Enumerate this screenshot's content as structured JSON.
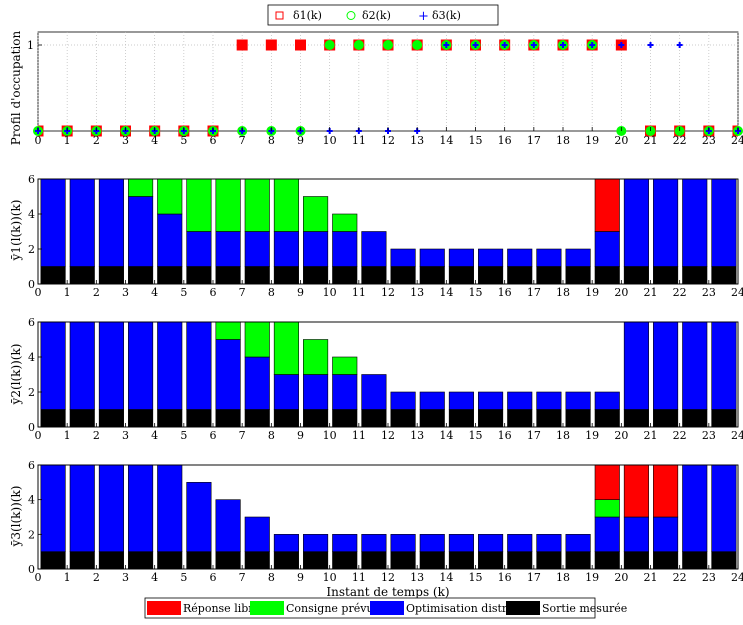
{
  "chart_data": [
    {
      "type": "scatter",
      "ylabel": "Profil d'occupation",
      "xlim": [
        0,
        24
      ],
      "ylim": [
        0,
        1
      ],
      "xticks": [
        0,
        1,
        2,
        3,
        4,
        5,
        6,
        7,
        8,
        9,
        10,
        11,
        12,
        13,
        14,
        15,
        16,
        17,
        18,
        19,
        20,
        21,
        22,
        23,
        24
      ],
      "yticks": [
        1
      ],
      "grid": true,
      "legend_position": "top",
      "series": [
        {
          "name": "δ1(k)",
          "marker": "square",
          "color": "#ff0000",
          "x": [
            0,
            1,
            2,
            3,
            4,
            5,
            6,
            7,
            8,
            9,
            10,
            11,
            12,
            13,
            14,
            15,
            16,
            17,
            18,
            19,
            20,
            21,
            22,
            23,
            24
          ],
          "y": [
            0,
            0,
            0,
            0,
            0,
            0,
            0,
            1,
            1,
            1,
            1,
            1,
            1,
            1,
            1,
            1,
            1,
            1,
            1,
            1,
            1,
            0,
            0,
            0,
            0
          ]
        },
        {
          "name": "δ2(k)",
          "marker": "circle",
          "color": "#00ff00",
          "x": [
            0,
            1,
            2,
            3,
            4,
            5,
            6,
            7,
            8,
            9,
            10,
            11,
            12,
            13,
            14,
            15,
            16,
            17,
            18,
            19,
            20,
            21,
            22,
            23,
            24
          ],
          "y": [
            0,
            0,
            0,
            0,
            0,
            0,
            0,
            0,
            0,
            0,
            1,
            1,
            1,
            1,
            1,
            1,
            1,
            1,
            1,
            1,
            0,
            0,
            0,
            0,
            0
          ]
        },
        {
          "name": "δ3(k)",
          "marker": "plus",
          "color": "#0000ff",
          "x": [
            0,
            1,
            2,
            3,
            4,
            5,
            6,
            7,
            8,
            9,
            10,
            11,
            12,
            13,
            14,
            15,
            16,
            17,
            18,
            19,
            20,
            21,
            22,
            23,
            24
          ],
          "y": [
            0,
            0,
            0,
            0,
            0,
            0,
            0,
            0,
            0,
            0,
            0,
            0,
            0,
            0,
            1,
            1,
            1,
            1,
            1,
            1,
            1,
            1,
            1,
            0,
            0
          ]
        }
      ]
    },
    {
      "type": "bar",
      "stacked": true,
      "ylabel": "ȳ1(l(k))(k)",
      "xlim": [
        0,
        24
      ],
      "ylim": [
        0,
        6
      ],
      "yticks": [
        0,
        2,
        4,
        6
      ],
      "categories": [
        0,
        1,
        2,
        3,
        4,
        5,
        6,
        7,
        8,
        9,
        10,
        11,
        12,
        13,
        14,
        15,
        16,
        17,
        18,
        19,
        20,
        21,
        22,
        23
      ],
      "series": [
        {
          "name": "Sortie mesurée",
          "values": [
            1,
            1,
            1,
            1,
            1,
            1,
            1,
            1,
            1,
            1,
            1,
            1,
            1,
            1,
            1,
            1,
            1,
            1,
            1,
            1,
            1,
            1,
            1,
            1
          ]
        },
        {
          "name": "Optimisation distribuée",
          "values": [
            5,
            5,
            5,
            4,
            3,
            2,
            2,
            2,
            2,
            2,
            2,
            2,
            1,
            1,
            1,
            1,
            1,
            1,
            1,
            2,
            5,
            5,
            5,
            5
          ]
        },
        {
          "name": "Consigne prévue",
          "values": [
            0,
            0,
            0,
            1,
            2,
            3,
            3,
            3,
            3,
            2,
            1,
            0,
            0,
            0,
            0,
            0,
            0,
            0,
            0,
            0,
            0,
            0,
            0,
            0
          ]
        },
        {
          "name": "Réponse libre",
          "values": [
            0,
            0,
            0,
            0,
            0,
            0,
            0,
            0,
            0,
            0,
            0,
            0,
            0,
            0,
            0,
            0,
            0,
            0,
            0,
            3,
            0,
            0,
            0,
            0
          ]
        }
      ]
    },
    {
      "type": "bar",
      "stacked": true,
      "ylabel": "ȳ2(l(k))(k)",
      "xlim": [
        0,
        24
      ],
      "ylim": [
        0,
        6
      ],
      "yticks": [
        0,
        2,
        4,
        6
      ],
      "categories": [
        0,
        1,
        2,
        3,
        4,
        5,
        6,
        7,
        8,
        9,
        10,
        11,
        12,
        13,
        14,
        15,
        16,
        17,
        18,
        19,
        20,
        21,
        22,
        23
      ],
      "series": [
        {
          "name": "Sortie mesurée",
          "values": [
            1,
            1,
            1,
            1,
            1,
            1,
            1,
            1,
            1,
            1,
            1,
            1,
            1,
            1,
            1,
            1,
            1,
            1,
            1,
            1,
            1,
            1,
            1,
            1
          ]
        },
        {
          "name": "Optimisation distribuée",
          "values": [
            5,
            5,
            5,
            5,
            5,
            5,
            4,
            3,
            2,
            2,
            2,
            2,
            1,
            1,
            1,
            1,
            1,
            1,
            1,
            1,
            5,
            5,
            5,
            5
          ]
        },
        {
          "name": "Consigne prévue",
          "values": [
            0,
            0,
            0,
            0,
            0,
            0,
            1,
            2,
            3,
            2,
            1,
            0,
            0,
            0,
            0,
            0,
            0,
            0,
            0,
            0,
            0,
            0,
            0,
            0
          ]
        },
        {
          "name": "Réponse libre",
          "values": [
            0,
            0,
            0,
            0,
            0,
            0,
            0,
            0,
            0,
            0,
            0,
            0,
            0,
            0,
            0,
            0,
            0,
            0,
            0,
            0,
            0,
            0,
            0,
            0
          ]
        }
      ]
    },
    {
      "type": "bar",
      "stacked": true,
      "ylabel": "ȳ3(l(k))(k)",
      "xlabel": "Instant de temps (k)",
      "xlim": [
        0,
        24
      ],
      "ylim": [
        0,
        6
      ],
      "yticks": [
        0,
        2,
        4,
        6
      ],
      "categories": [
        0,
        1,
        2,
        3,
        4,
        5,
        6,
        7,
        8,
        9,
        10,
        11,
        12,
        13,
        14,
        15,
        16,
        17,
        18,
        19,
        20,
        21,
        22,
        23
      ],
      "series": [
        {
          "name": "Sortie mesurée",
          "values": [
            1,
            1,
            1,
            1,
            1,
            1,
            1,
            1,
            1,
            1,
            1,
            1,
            1,
            1,
            1,
            1,
            1,
            1,
            1,
            1,
            1,
            1,
            1,
            1
          ]
        },
        {
          "name": "Optimisation distribuée",
          "values": [
            5,
            5,
            5,
            5,
            5,
            4,
            3,
            2,
            1,
            1,
            1,
            1,
            1,
            1,
            1,
            1,
            1,
            1,
            1,
            2,
            2,
            2,
            5,
            5
          ]
        },
        {
          "name": "Consigne prévue",
          "values": [
            0,
            0,
            0,
            0,
            0,
            0,
            0,
            0,
            0,
            0,
            0,
            0,
            0,
            0,
            0,
            0,
            0,
            0,
            0,
            1,
            0,
            0,
            0,
            0
          ]
        },
        {
          "name": "Réponse libre",
          "values": [
            0,
            0,
            0,
            0,
            0,
            0,
            0,
            0,
            0,
            0,
            0,
            0,
            0,
            0,
            0,
            0,
            0,
            0,
            0,
            2,
            3,
            3,
            0,
            0
          ]
        }
      ]
    }
  ],
  "bottom_legend": [
    {
      "name": "Réponse libre",
      "color": "#ff0000"
    },
    {
      "name": "Consigne prévue",
      "color": "#00ff00"
    },
    {
      "name": "Optimisation distribuée",
      "color": "#0000ff"
    },
    {
      "name": "Sortie mesurée",
      "color": "#000000"
    }
  ],
  "colors": {
    "black": "#000000",
    "blue": "#0000ff",
    "green": "#00ff00",
    "red": "#ff0000"
  }
}
